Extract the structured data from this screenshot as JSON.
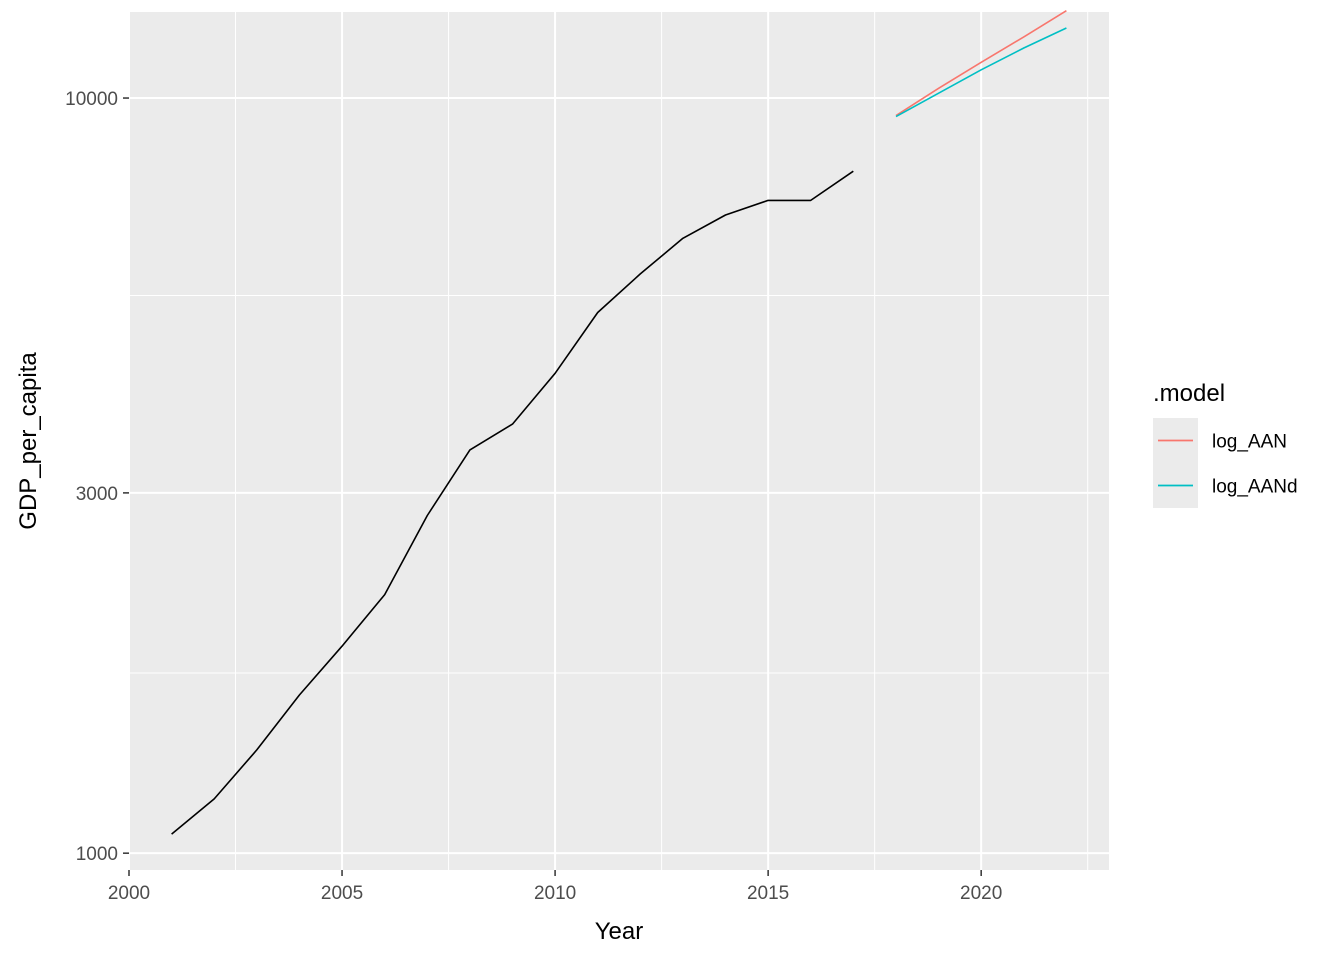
{
  "chart_data": {
    "type": "line",
    "title": "",
    "xlabel": "Year",
    "ylabel": "GDP_per_capita",
    "y_scale": "log",
    "xlim": [
      2000,
      2023
    ],
    "ylim": [
      950,
      13000
    ],
    "x_ticks": [
      2000,
      2005,
      2010,
      2015,
      2020
    ],
    "x_tick_labels": [
      "2000",
      "2005",
      "2010",
      "2015",
      "2020"
    ],
    "y_ticks": [
      1000,
      3000,
      10000
    ],
    "y_tick_labels": [
      "1000",
      "3000",
      "10000"
    ],
    "grid": true,
    "background": "#EBEBEB",
    "legend": {
      "title": ".model",
      "placement": "right",
      "entries": [
        {
          "label": "log_AAN",
          "color": "#F8766D"
        },
        {
          "label": "log_AANd",
          "color": "#00BFC4"
        }
      ]
    },
    "series": [
      {
        "color": "#000000",
        "x": [
          2001,
          2002,
          2003,
          2004,
          2005,
          2006,
          2007,
          2008,
          2009,
          2010,
          2011,
          2012,
          2013,
          2014,
          2015,
          2016,
          2017
        ],
        "y": [
          1060,
          1180,
          1370,
          1620,
          1880,
          2200,
          2800,
          3420,
          3700,
          4320,
          5200,
          5850,
          6520,
          7000,
          7320,
          7320,
          8000
        ]
      },
      {
        "name": "log_AAN",
        "color": "#F8766D",
        "x": [
          2018,
          2019,
          2020,
          2021,
          2022
        ],
        "y": [
          9480,
          10300,
          11150,
          12050,
          13050
        ]
      },
      {
        "name": "log_AANd",
        "color": "#00BFC4",
        "x": [
          2018,
          2019,
          2020,
          2021,
          2022
        ],
        "y": [
          9450,
          10150,
          10900,
          11650,
          12380
        ]
      }
    ]
  }
}
